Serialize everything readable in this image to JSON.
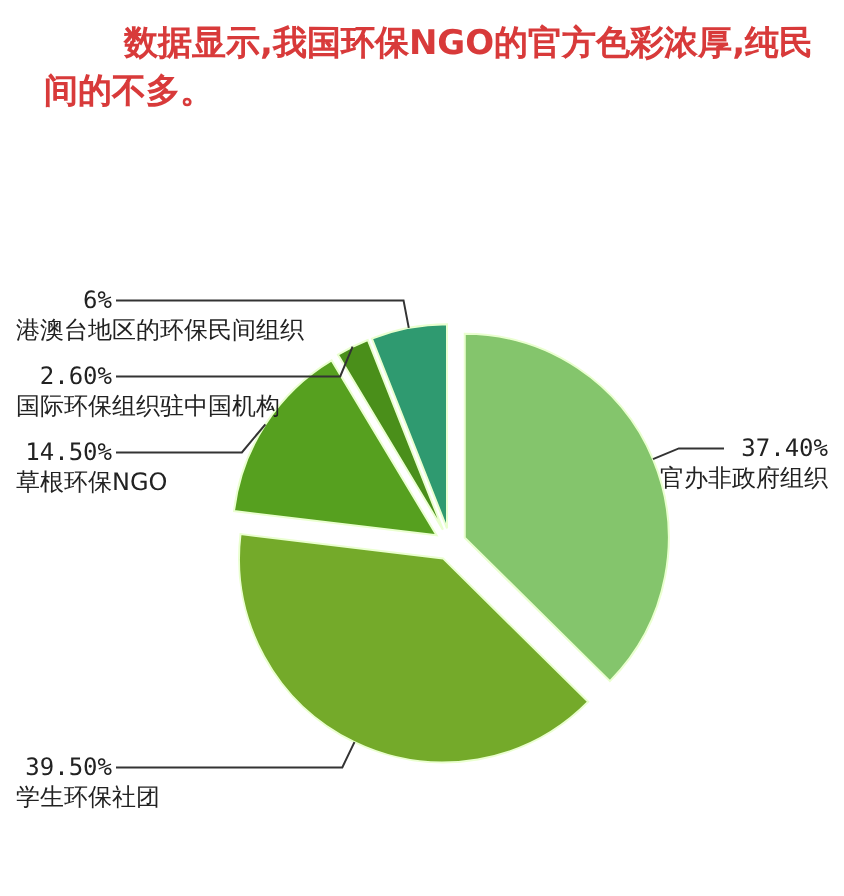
{
  "chart_data": {
    "type": "pie",
    "title": "数据显示,我国环保NGO的官方色彩浓厚,纯民间的不多。",
    "categories": [
      "官办非政府组织",
      "学生环保社团",
      "草根环保NGO",
      "国际环保组织驻中国机构",
      "港澳台地区的环保民间组织"
    ],
    "values": [
      37.4,
      39.5,
      14.5,
      2.6,
      6
    ],
    "value_labels": [
      "37.40%",
      "39.50%",
      "14.50%",
      "2.60%",
      "6%"
    ],
    "colors": [
      "#84c56c",
      "#74aa2a",
      "#56a01f",
      "#4a8f1a",
      "#2f9a70"
    ]
  }
}
